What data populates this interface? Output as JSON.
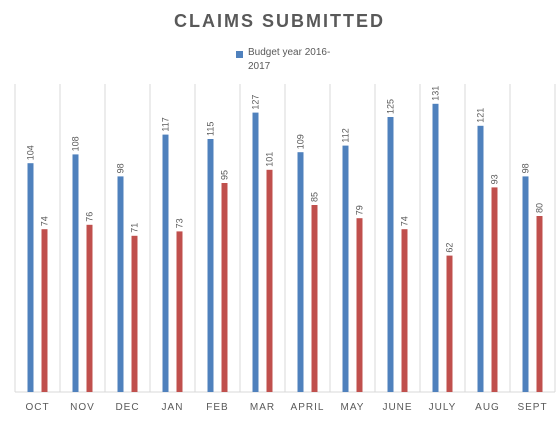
{
  "colors": {
    "series1": "#4f81bd",
    "series2": "#c0504d",
    "grid": "#d9d9d9",
    "text": "#595959"
  },
  "chart_data": {
    "type": "bar",
    "title": "CLAIMS SUBMITTED",
    "xlabel": "",
    "ylabel": "",
    "ylim": [
      0,
      140
    ],
    "grid": true,
    "legend_position": "top",
    "categories": [
      "OCT",
      "NOV",
      "DEC",
      "JAN",
      "FEB",
      "MAR",
      "APRIL",
      "MAY",
      "JUNE",
      "JULY",
      "AUG",
      "SEPT"
    ],
    "series": [
      {
        "name": "Budget year 2016-2017",
        "legend_lines": [
          "Budget year 2016-",
          "2017"
        ],
        "values": [
          104,
          108,
          98,
          117,
          115,
          127,
          109,
          112,
          125,
          131,
          121,
          98
        ]
      },
      {
        "name": "",
        "values": [
          74,
          76,
          71,
          73,
          95,
          101,
          85,
          79,
          74,
          62,
          93,
          80
        ]
      }
    ]
  }
}
